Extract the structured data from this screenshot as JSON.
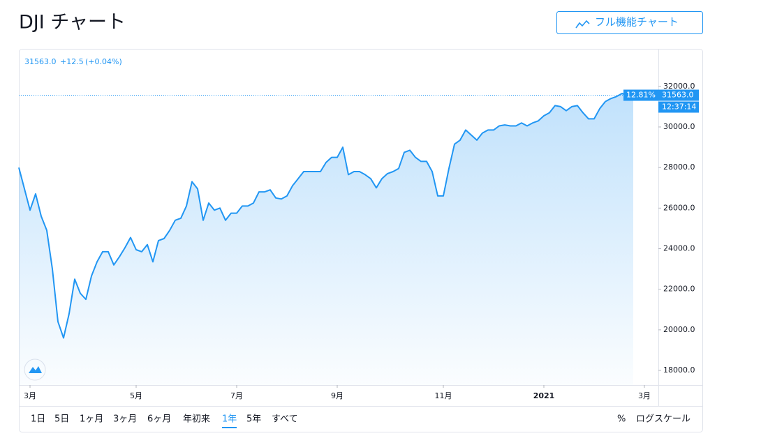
{
  "header": {
    "title": "DJI チャート",
    "button": "フル機能チャート"
  },
  "chart_data": {
    "type": "line",
    "legend": {
      "price": "31563.0",
      "change": "+12.5",
      "change_percent": "(+0.04%)"
    },
    "last_value_label": "31563.0",
    "percent_label": "12.81%",
    "countdown_label": "12:37:14",
    "color": "#2196f3",
    "categories": [
      null,
      null,
      "3月",
      null,
      null,
      null,
      null,
      null,
      null,
      null,
      null,
      null,
      null,
      null,
      null,
      null,
      null,
      null,
      null,
      null,
      null,
      "5月",
      null,
      null,
      null,
      null,
      null,
      null,
      null,
      null,
      null,
      null,
      null,
      null,
      null,
      null,
      null,
      null,
      null,
      "7月",
      null,
      null,
      null,
      null,
      null,
      null,
      null,
      null,
      null,
      null,
      null,
      null,
      null,
      null,
      null,
      null,
      null,
      "9月",
      null,
      null,
      null,
      null,
      null,
      null,
      null,
      null,
      null,
      null,
      null,
      null,
      null,
      null,
      null,
      null,
      null,
      null,
      "11月",
      null,
      null,
      null,
      null,
      null,
      null,
      null,
      null,
      null,
      null,
      null,
      null,
      null,
      null,
      null,
      null,
      null,
      "2021",
      null,
      null,
      null,
      null,
      null,
      null,
      null,
      null,
      null,
      null,
      null,
      null,
      null,
      null,
      null,
      null,
      null,
      "3月"
    ],
    "values": [
      28000,
      26950,
      25900,
      26700,
      25600,
      24900,
      23000,
      20400,
      19600,
      20800,
      22500,
      21800,
      21500,
      22650,
      23350,
      23850,
      23850,
      23200,
      23600,
      24050,
      24550,
      23950,
      23850,
      24200,
      23350,
      24400,
      24500,
      24900,
      25400,
      25500,
      26100,
      27300,
      26950,
      25400,
      26250,
      25900,
      26000,
      25400,
      25750,
      25750,
      26100,
      26100,
      26250,
      26800,
      26800,
      26900,
      26500,
      26450,
      26600,
      27100,
      27450,
      27800,
      27800,
      27800,
      27800,
      28250,
      28500,
      28500,
      29000,
      27650,
      27800,
      27800,
      27650,
      27450,
      27000,
      27450,
      27700,
      27800,
      27950,
      28750,
      28850,
      28500,
      28300,
      28300,
      27800,
      26600,
      26600,
      27950,
      29150,
      29350,
      29850,
      29600,
      29350,
      29700,
      29850,
      29850,
      30050,
      30100,
      30050,
      30050,
      30200,
      30050,
      30200,
      30300,
      30550,
      30700,
      31050,
      31000,
      30800,
      31000,
      31050,
      30700,
      30400,
      30400,
      30900,
      31250,
      31400,
      31500,
      31650,
      31550,
      31563,
      null,
      null
    ],
    "ylim": [
      17280,
      33850
    ],
    "yticks": [
      {
        "value": 18000,
        "label": "18000.0"
      },
      {
        "value": 20000,
        "label": "20000.0"
      },
      {
        "value": 22000,
        "label": "22000.0"
      },
      {
        "value": 24000,
        "label": "24000.0"
      },
      {
        "value": 26000,
        "label": "26000.0"
      },
      {
        "value": 28000,
        "label": "28000.0"
      },
      {
        "value": 30000,
        "label": "30000.0"
      },
      {
        "value": 32000,
        "label": "32000.0"
      }
    ]
  },
  "toolbar": {
    "ranges": [
      "1日",
      "5日",
      "1ヶ月",
      "3ヶ月",
      "6ヶ月",
      "年初来",
      "1年",
      "5年",
      "すべて"
    ],
    "selected": 6,
    "percent": "%",
    "log_scale": "ログスケール"
  }
}
